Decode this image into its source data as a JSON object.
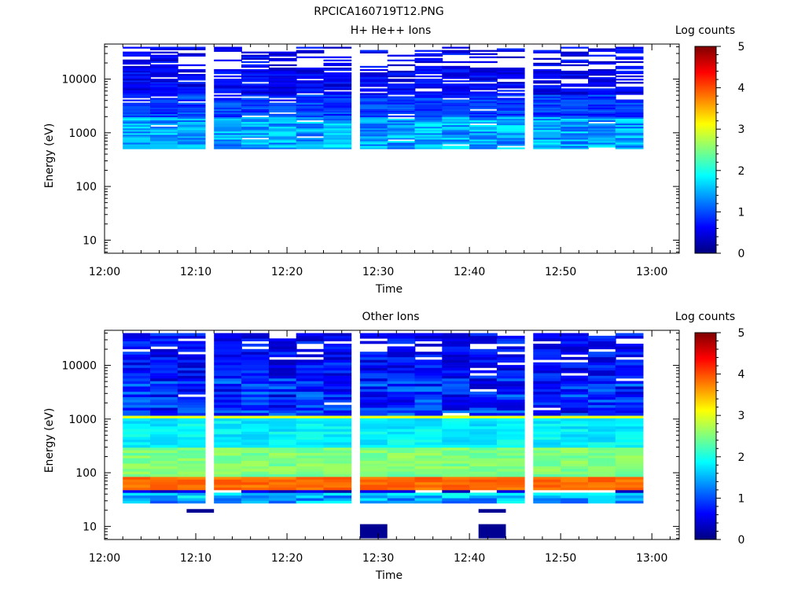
{
  "figure_title": "RPCICA160719T12.PNG",
  "colorscale": {
    "stops": [
      "#00007f",
      "#0000ff",
      "#007fff",
      "#00ffff",
      "#7fff7f",
      "#ffff00",
      "#ff7f00",
      "#ff0000",
      "#7f0000"
    ]
  },
  "chart_data": [
    {
      "type": "heatmap",
      "title": "H+ He++ Ions",
      "xlabel": "Time",
      "ylabel": "Energy (eV)",
      "x_ticks": [
        "12:00",
        "12:10",
        "12:20",
        "12:30",
        "12:40",
        "12:50",
        "13:00"
      ],
      "y_ticks": [
        "10",
        "100",
        "1000",
        "10000"
      ],
      "y_scale": "log",
      "ylim": [
        5.7,
        45000
      ],
      "xlim": [
        "12:00",
        "13:03"
      ],
      "colorbar_label": "Log counts",
      "colorbar_ticks": [
        "0",
        "1",
        "2",
        "3",
        "4",
        "5"
      ],
      "colorbar_range": [
        0,
        5
      ],
      "time_bins": [
        "12:02",
        "12:05",
        "12:08",
        "12:12",
        "12:15",
        "12:18",
        "12:21",
        "12:24",
        "12:28",
        "12:31",
        "12:34",
        "12:37",
        "12:40",
        "12:43",
        "12:47",
        "12:50",
        "12:53",
        "12:56"
      ],
      "energy_range_eV": [
        500,
        40000
      ],
      "approx_log_counts": {
        "above_5000_eV": "0.3-0.8",
        "2000_to_5000_eV": "0.7-1.2",
        "500_to_2000_eV": "1.0-1.9"
      }
    },
    {
      "type": "heatmap",
      "title": "Other Ions",
      "xlabel": "Time",
      "ylabel": "Energy (eV)",
      "x_ticks": [
        "12:00",
        "12:10",
        "12:20",
        "12:30",
        "12:40",
        "12:50",
        "13:00"
      ],
      "y_ticks": [
        "10",
        "100",
        "1000",
        "10000"
      ],
      "y_scale": "log",
      "ylim": [
        5.7,
        45000
      ],
      "xlim": [
        "12:00",
        "13:03"
      ],
      "colorbar_label": "Log counts",
      "colorbar_ticks": [
        "0",
        "1",
        "2",
        "3",
        "4",
        "5"
      ],
      "colorbar_range": [
        0,
        5
      ],
      "time_bins": [
        "12:02",
        "12:05",
        "12:08",
        "12:12",
        "12:15",
        "12:18",
        "12:21",
        "12:24",
        "12:28",
        "12:31",
        "12:34",
        "12:37",
        "12:40",
        "12:43",
        "12:47",
        "12:50",
        "12:53",
        "12:56"
      ],
      "energy_range_eV": [
        27,
        40000
      ],
      "approx_log_counts": {
        "above_1200_eV": "0.3-1.3",
        "band_near_1100_eV": "3.0",
        "300_to_1100_eV": "1.6-2.0",
        "100_to_300_eV": "2.3-2.7",
        "band_near_63_eV": "3.8-4.0",
        "27_to_45_eV": "1.0-2.0"
      },
      "isolated_bins": [
        {
          "time_start": "12:09",
          "time_end": "12:12",
          "energy_eV": "18-21",
          "log_counts": 0.1
        },
        {
          "time_start": "12:28",
          "time_end": "12:31",
          "energy_eV": "6-11",
          "log_counts": 0.1
        },
        {
          "time_start": "12:41",
          "time_end": "12:44",
          "energy_eV": "18-21",
          "log_counts": 0.1
        },
        {
          "time_start": "12:41",
          "time_end": "12:44",
          "energy_eV": "6-11",
          "log_counts": 0.1
        }
      ]
    }
  ]
}
